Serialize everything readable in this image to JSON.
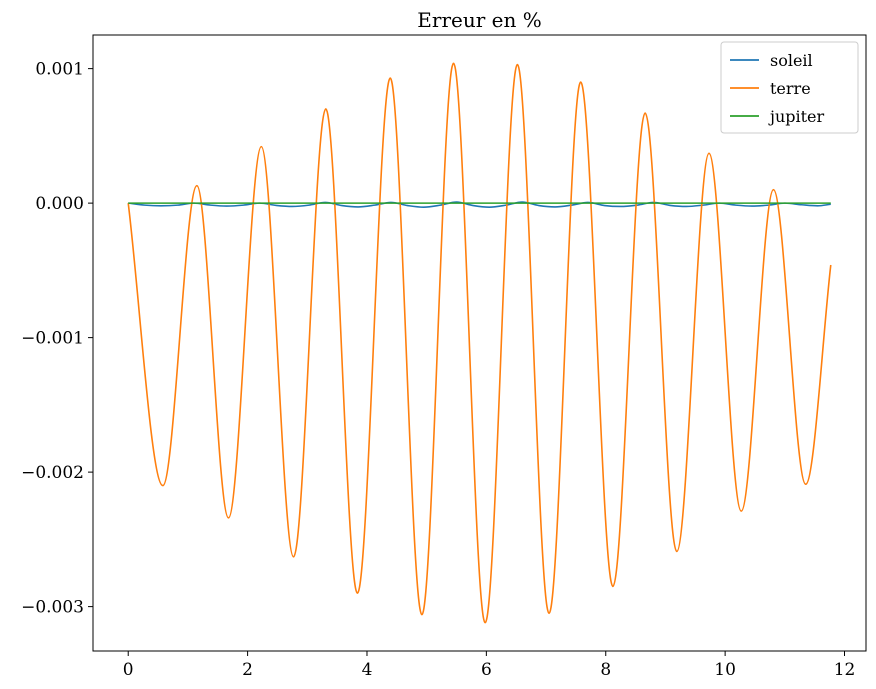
{
  "chart_data": {
    "type": "line",
    "title": "Erreur en %",
    "xlabel": "",
    "ylabel": "",
    "xlim": [
      -0.59,
      12.36
    ],
    "ylim": [
      -0.00333,
      0.00125
    ],
    "xticks": [
      0,
      2,
      4,
      6,
      8,
      10,
      12
    ],
    "xtick_labels": [
      "0",
      "2",
      "4",
      "6",
      "8",
      "10",
      "12"
    ],
    "yticks": [
      0.001,
      0.0,
      -0.001,
      -0.002,
      -0.003
    ],
    "ytick_labels": [
      "0.001",
      "0.000",
      "−0.001",
      "−0.002",
      "−0.003"
    ],
    "grid": false,
    "legend_position": "top-right",
    "series": [
      {
        "name": "soleil",
        "color": "#1f77b4",
        "x": [
          0,
          0.28,
          0.55,
          0.83,
          1.1,
          1.38,
          1.65,
          1.93,
          2.2,
          2.48,
          2.75,
          3.03,
          3.3,
          3.58,
          3.85,
          4.13,
          4.4,
          4.68,
          4.95,
          5.23,
          5.5,
          5.78,
          6.05,
          6.33,
          6.6,
          6.88,
          7.15,
          7.43,
          7.7,
          7.98,
          8.25,
          8.53,
          8.8,
          9.08,
          9.35,
          9.63,
          9.9,
          10.18,
          10.45,
          10.73,
          11.0,
          11.28,
          11.55,
          11.77
        ],
        "values": [
          0,
          -1.5e-05,
          -2e-05,
          -1.5e-05,
          0,
          -1.5e-05,
          -2.2e-05,
          -1.5e-05,
          0,
          -1.7e-05,
          -2.5e-05,
          -1.5e-05,
          5e-06,
          -1.8e-05,
          -2.8e-05,
          -1.5e-05,
          5e-06,
          -1.8e-05,
          -3e-05,
          -1.5e-05,
          8e-06,
          -1.8e-05,
          -3e-05,
          -1.5e-05,
          8e-06,
          -1.8e-05,
          -2.8e-05,
          -1.5e-05,
          5e-06,
          -1.8e-05,
          -2.5e-05,
          -1.5e-05,
          5e-06,
          -1.7e-05,
          -2.5e-05,
          -1.5e-05,
          0,
          -1.5e-05,
          -2.2e-05,
          -1.5e-05,
          0,
          -1.2e-05,
          -2e-05,
          -8e-06
        ]
      },
      {
        "name": "terre",
        "color": "#ff7f0e",
        "x": [
          0,
          0.58,
          1.15,
          1.68,
          2.23,
          2.77,
          3.31,
          3.84,
          4.39,
          4.92,
          5.45,
          5.98,
          6.52,
          7.05,
          7.58,
          8.12,
          8.66,
          9.19,
          9.73,
          10.27,
          10.81,
          11.35,
          11.77
        ],
        "values": [
          0,
          -0.0021,
          0.00013,
          -0.00234,
          0.00042,
          -0.00263,
          0.0007,
          -0.0029,
          0.00093,
          -0.00306,
          0.00104,
          -0.00312,
          0.00103,
          -0.00305,
          0.0009,
          -0.00285,
          0.00067,
          -0.00259,
          0.00037,
          -0.00229,
          0.0001,
          -0.00209,
          -0.00046
        ]
      },
      {
        "name": "jupiter",
        "color": "#2ca02c",
        "x": [
          0,
          11.77
        ],
        "values": [
          0,
          0
        ]
      }
    ]
  }
}
